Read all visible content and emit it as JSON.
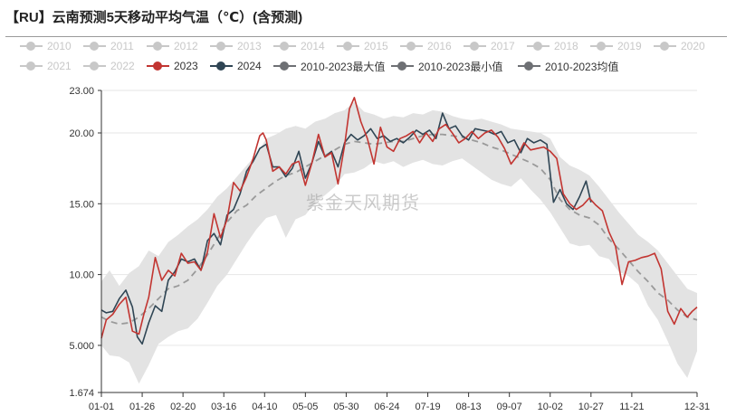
{
  "title": "【RU】云南预测5天移动平均气温（℃）(含预测)",
  "watermark": "紫金天风期货",
  "colors": {
    "legend_inactive": "#c8c8c8",
    "s2023": "#c23531",
    "s2024": "#2f4554",
    "max_min": "#6e7074",
    "band": "#e3e3e3",
    "avg": "#9a9a9a"
  },
  "legend": [
    {
      "label": "2010",
      "active": false
    },
    {
      "label": "2011",
      "active": false
    },
    {
      "label": "2012",
      "active": false
    },
    {
      "label": "2013",
      "active": false
    },
    {
      "label": "2014",
      "active": false
    },
    {
      "label": "2015",
      "active": false
    },
    {
      "label": "2016",
      "active": false
    },
    {
      "label": "2017",
      "active": false
    },
    {
      "label": "2018",
      "active": false
    },
    {
      "label": "2019",
      "active": false
    },
    {
      "label": "2020",
      "active": false
    },
    {
      "label": "2021",
      "active": false
    },
    {
      "label": "2022",
      "active": false
    },
    {
      "label": "2023",
      "active": true,
      "color": "#c23531"
    },
    {
      "label": "2024",
      "active": true,
      "color": "#2f4554"
    },
    {
      "label": "2010-2023最大值",
      "active": true,
      "color": "#6e7074"
    },
    {
      "label": "2010-2023最小值",
      "active": true,
      "color": "#6e7074"
    },
    {
      "label": "2010-2023均值",
      "active": true,
      "color": "#6e7074"
    }
  ],
  "chart_data": {
    "type": "line",
    "title": "【RU】云南预测5天移动平均气温（℃）(含预测)",
    "ylim": [
      1.674,
      23.0
    ],
    "y_tick_labels": [
      "1.674",
      "5.000",
      "10.00",
      "15.00",
      "20.00",
      "23.00"
    ],
    "y_ticks": [
      1.674,
      5.0,
      10.0,
      15.0,
      20.0,
      23.0
    ],
    "x_tick_labels": [
      "01-01",
      "01-26",
      "02-20",
      "03-16",
      "04-10",
      "05-05",
      "05-30",
      "06-24",
      "07-19",
      "08-13",
      "09-07",
      "10-02",
      "10-27",
      "11-21",
      "12-31"
    ],
    "x_tick_days": [
      1,
      26,
      51,
      76,
      101,
      126,
      151,
      176,
      201,
      226,
      251,
      276,
      301,
      326,
      366
    ],
    "grid": true,
    "series": [
      {
        "name": "2010-2023最大值",
        "role": "band_upper",
        "x": [
          1,
          6,
          12,
          18,
          24,
          30,
          36,
          42,
          48,
          54,
          60,
          66,
          72,
          78,
          84,
          90,
          96,
          102,
          108,
          114,
          120,
          126,
          132,
          138,
          144,
          150,
          156,
          162,
          168,
          174,
          180,
          186,
          192,
          198,
          204,
          210,
          216,
          222,
          228,
          234,
          240,
          246,
          252,
          258,
          264,
          270,
          276,
          282,
          288,
          294,
          300,
          306,
          312,
          318,
          324,
          330,
          336,
          342,
          348,
          354,
          360,
          366
        ],
        "y": [
          9.5,
          10.3,
          9.2,
          10.1,
          10.6,
          11.7,
          11.3,
          12.3,
          12.8,
          13.4,
          13.9,
          14.6,
          15.5,
          16.1,
          16.9,
          17.7,
          18.5,
          19.6,
          19.9,
          20.3,
          20.5,
          20.3,
          20.8,
          21.0,
          21.4,
          21.6,
          22.2,
          21.5,
          21.3,
          21.0,
          21.2,
          21.1,
          21.4,
          21.3,
          21.6,
          21.5,
          21.2,
          21.0,
          20.9,
          21.0,
          20.8,
          20.6,
          20.3,
          20.2,
          20.1,
          20.0,
          19.6,
          18.3,
          17.7,
          17.4,
          17.0,
          16.2,
          15.3,
          14.4,
          13.6,
          12.8,
          12.3,
          11.7,
          10.8,
          9.9,
          9.0,
          8.7
        ]
      },
      {
        "name": "2010-2023最小值",
        "role": "band_lower",
        "x": [
          1,
          6,
          12,
          18,
          24,
          30,
          36,
          42,
          48,
          54,
          60,
          66,
          72,
          78,
          84,
          90,
          96,
          102,
          108,
          114,
          120,
          126,
          132,
          138,
          144,
          150,
          156,
          162,
          168,
          174,
          180,
          186,
          192,
          198,
          204,
          210,
          216,
          222,
          228,
          234,
          240,
          246,
          252,
          258,
          264,
          270,
          276,
          282,
          288,
          294,
          300,
          306,
          312,
          318,
          324,
          330,
          336,
          342,
          348,
          354,
          360,
          366
        ],
        "y": [
          5.0,
          4.3,
          4.2,
          3.8,
          2.3,
          3.6,
          5.1,
          5.6,
          6.0,
          6.2,
          6.9,
          8.0,
          9.2,
          10.0,
          11.1,
          12.2,
          13.2,
          14.0,
          14.2,
          12.6,
          13.9,
          14.2,
          15.1,
          15.6,
          16.2,
          17.1,
          17.2,
          17.5,
          18.0,
          17.8,
          18.0,
          17.6,
          17.9,
          18.1,
          17.8,
          17.7,
          18.0,
          18.2,
          17.7,
          17.2,
          16.7,
          16.4,
          16.2,
          16.8,
          16.0,
          15.3,
          14.4,
          13.3,
          12.2,
          12.0,
          12.1,
          11.3,
          11.1,
          10.2,
          9.9,
          9.3,
          7.8,
          6.8,
          5.3,
          3.7,
          2.7,
          4.6
        ]
      },
      {
        "name": "2010-2023均值",
        "x": [
          1,
          6,
          12,
          18,
          24,
          30,
          36,
          42,
          48,
          54,
          60,
          66,
          72,
          78,
          84,
          90,
          96,
          102,
          108,
          114,
          120,
          126,
          132,
          138,
          144,
          150,
          156,
          162,
          168,
          174,
          180,
          186,
          192,
          198,
          204,
          210,
          216,
          222,
          228,
          234,
          240,
          246,
          252,
          258,
          264,
          270,
          276,
          282,
          288,
          294,
          300,
          306,
          312,
          318,
          324,
          330,
          336,
          342,
          348,
          354,
          360,
          366
        ],
        "y": [
          7.0,
          6.7,
          6.5,
          6.6,
          7.0,
          7.6,
          8.3,
          9.0,
          9.2,
          9.6,
          10.4,
          11.4,
          12.5,
          13.7,
          14.5,
          14.9,
          15.6,
          16.1,
          16.6,
          17.0,
          17.2,
          17.6,
          18.0,
          18.4,
          18.8,
          19.2,
          19.4,
          19.3,
          19.2,
          19.3,
          19.4,
          19.4,
          19.6,
          19.8,
          19.9,
          19.9,
          19.8,
          19.7,
          19.5,
          19.3,
          19.0,
          18.8,
          18.5,
          18.2,
          17.9,
          17.5,
          16.7,
          15.3,
          14.6,
          14.2,
          14.0,
          13.5,
          12.5,
          11.8,
          11.0,
          10.2,
          9.5,
          8.7,
          8.2,
          7.5,
          7.0,
          6.8
        ]
      },
      {
        "name": "2023",
        "x": [
          1,
          4,
          8,
          12,
          16,
          20,
          24,
          27,
          30,
          34,
          38,
          42,
          46,
          50,
          54,
          58,
          62,
          66,
          70,
          74,
          78,
          82,
          86,
          90,
          94,
          98,
          100,
          102,
          106,
          110,
          114,
          118,
          122,
          126,
          130,
          134,
          138,
          142,
          146,
          150,
          153,
          156,
          160,
          164,
          168,
          172,
          176,
          180,
          184,
          188,
          192,
          196,
          200,
          204,
          208,
          212,
          216,
          220,
          224,
          228,
          232,
          236,
          240,
          244,
          248,
          252,
          256,
          260,
          264,
          268,
          272,
          276,
          280,
          284,
          288,
          292,
          296,
          300,
          304,
          308,
          312,
          316,
          320,
          324,
          328,
          332,
          336,
          340,
          344,
          348,
          352,
          356,
          360,
          363,
          366
        ],
        "y": [
          5.5,
          6.8,
          7.2,
          7.9,
          8.4,
          6.0,
          5.8,
          7.2,
          8.4,
          11.2,
          9.6,
          10.3,
          9.9,
          11.5,
          10.8,
          10.9,
          10.3,
          11.6,
          14.3,
          12.6,
          13.9,
          16.5,
          15.9,
          16.9,
          18.2,
          19.8,
          20.0,
          19.5,
          17.3,
          17.6,
          17.1,
          17.8,
          18.0,
          16.3,
          17.9,
          19.9,
          18.3,
          18.6,
          16.4,
          19.1,
          21.7,
          22.5,
          20.8,
          19.6,
          17.8,
          20.4,
          19.0,
          18.7,
          19.6,
          19.8,
          20.1,
          19.3,
          20.0,
          19.4,
          20.3,
          20.6,
          20.0,
          19.3,
          19.6,
          20.1,
          19.6,
          20.0,
          20.2,
          19.7,
          18.9,
          17.8,
          18.4,
          19.3,
          18.8,
          18.9,
          19.0,
          18.7,
          18.2,
          15.7,
          15.0,
          14.6,
          14.9,
          15.4,
          14.9,
          14.5,
          13.0,
          12.0,
          9.3,
          10.9,
          11.0,
          11.2,
          11.3,
          11.5,
          10.4,
          7.4,
          6.5,
          7.6,
          7.0,
          7.4,
          7.7
        ]
      },
      {
        "name": "2024",
        "x": [
          1,
          4,
          8,
          12,
          16,
          20,
          23,
          26,
          30,
          34,
          38,
          42,
          46,
          50,
          54,
          58,
          62,
          66,
          70,
          74,
          78,
          82,
          86,
          90,
          94,
          98,
          102,
          106,
          110,
          114,
          118,
          122,
          126,
          130,
          134,
          138,
          142,
          146,
          150,
          154,
          158,
          162,
          166,
          170,
          174,
          178,
          182,
          186,
          190,
          194,
          198,
          202,
          206,
          210,
          214,
          218,
          222,
          226,
          230,
          234,
          238,
          242,
          246,
          250,
          254,
          258,
          262,
          266,
          270,
          274,
          278,
          282,
          286,
          290,
          294,
          298,
          301
        ],
        "y": [
          7.5,
          7.3,
          7.4,
          8.3,
          8.9,
          7.7,
          5.6,
          5.1,
          6.6,
          7.8,
          7.4,
          9.6,
          10.2,
          11.1,
          10.9,
          11.1,
          10.3,
          12.4,
          12.9,
          12.1,
          14.2,
          14.6,
          15.7,
          17.3,
          18.0,
          18.9,
          19.2,
          17.6,
          17.6,
          16.9,
          17.5,
          18.7,
          16.8,
          17.9,
          19.4,
          18.3,
          18.7,
          17.6,
          19.3,
          19.9,
          19.5,
          19.8,
          20.3,
          19.6,
          19.8,
          19.4,
          19.6,
          19.3,
          19.7,
          20.2,
          19.9,
          20.2,
          19.6,
          21.4,
          20.3,
          20.5,
          19.8,
          19.5,
          20.3,
          20.2,
          20.1,
          19.9,
          20.1,
          19.3,
          19.5,
          18.6,
          19.6,
          19.3,
          19.5,
          19.2,
          15.1,
          16.0,
          15.0,
          14.6,
          15.5,
          16.6,
          15.1
        ]
      }
    ]
  }
}
